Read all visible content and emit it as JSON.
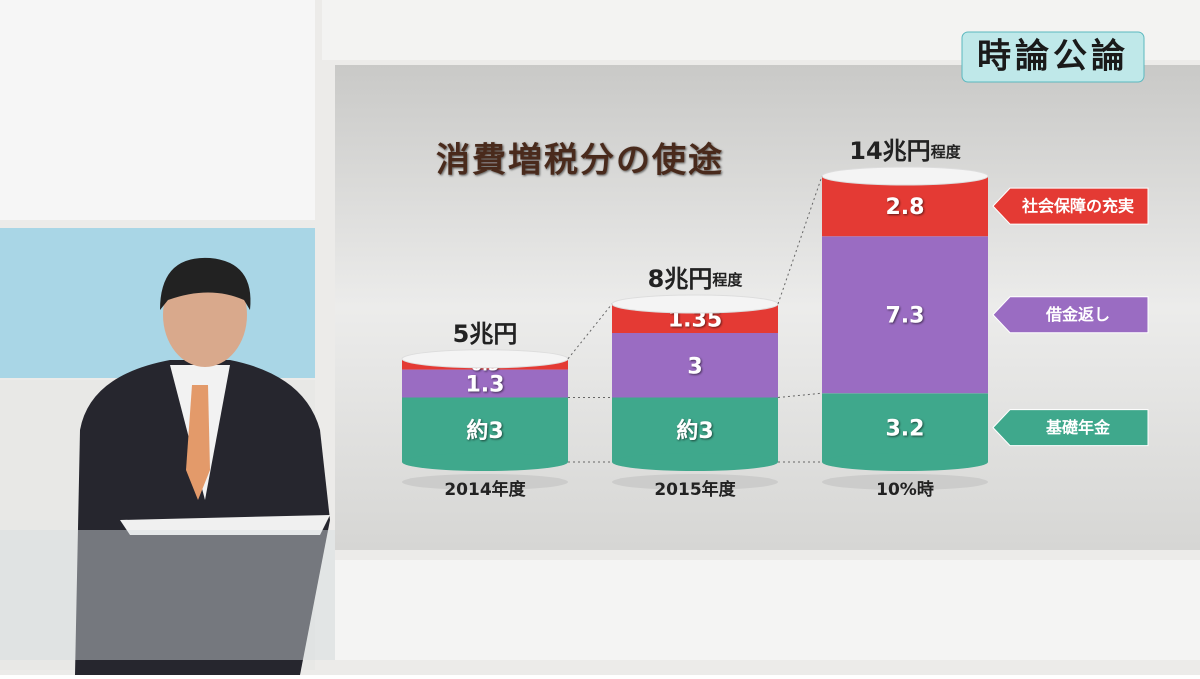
{
  "logo": "時論公論",
  "chart_data": {
    "type": "stacked-bar",
    "title": "消費増税分の使途",
    "categories": [
      "2014年度",
      "2015年度",
      "10%時"
    ],
    "totals": [
      {
        "label": "5兆円"
      },
      {
        "label": "8兆円",
        "suffix": "程度"
      },
      {
        "label": "14兆円",
        "suffix": "程度"
      }
    ],
    "series": [
      {
        "name": "基礎年金",
        "color": "#3fa88c",
        "values": [
          3,
          3,
          3.2
        ],
        "value_labels": [
          "約3",
          "約3",
          "3.2"
        ]
      },
      {
        "name": "借金返し",
        "color": "#9a6cc2",
        "values": [
          1.3,
          3,
          7.3
        ]
      },
      {
        "name": "社会保障の充実",
        "color": "#e43a34",
        "values": [
          0.5,
          1.35,
          2.8
        ]
      }
    ]
  }
}
